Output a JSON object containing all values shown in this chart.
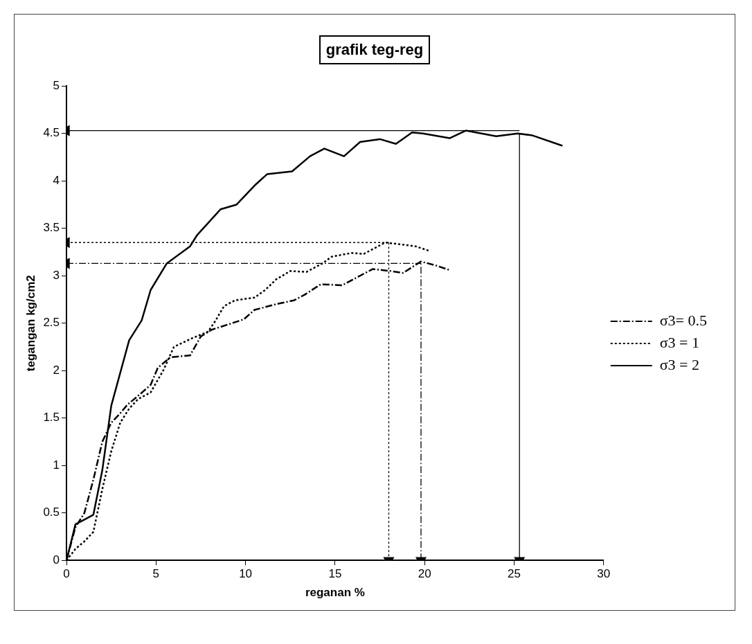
{
  "chart_data": {
    "type": "line",
    "title": "grafik teg-reg",
    "xlabel": "reganan %",
    "ylabel": "tegangan kg/cm2",
    "xlim": [
      0,
      30
    ],
    "xticks": [
      0,
      5,
      10,
      15,
      20,
      25,
      30
    ],
    "ylim": [
      0,
      5
    ],
    "yticks": [
      0,
      0.5,
      1,
      1.5,
      2,
      2.5,
      3,
      3.5,
      4,
      4.5,
      5
    ],
    "grid": false,
    "legend": "right",
    "series": [
      {
        "name": "σ3= 0.5",
        "color": "#000000",
        "line_style": "dashed",
        "x": [
          0,
          0.5,
          1,
          1.5,
          2,
          2.5,
          3,
          3.4,
          4.1,
          4.7,
          5.1,
          5.8,
          6.9,
          7.5,
          8.1,
          9.9,
          10.5,
          11.7,
          12.7,
          13.3,
          14.2,
          15.4,
          17.1,
          18.1,
          18.8,
          19.8,
          20.6,
          21.4
        ],
        "values": [
          0,
          0.35,
          0.5,
          0.85,
          1.25,
          1.45,
          1.55,
          1.64,
          1.75,
          1.85,
          2.03,
          2.14,
          2.16,
          2.36,
          2.43,
          2.54,
          2.64,
          2.7,
          2.74,
          2.8,
          2.91,
          2.9,
          3.07,
          3.05,
          3.03,
          3.15,
          3.11,
          3.06
        ]
      },
      {
        "name": "σ3 = 1",
        "color": "#000000",
        "line_style": "dotted",
        "x": [
          0,
          0.5,
          1,
          1.5,
          2,
          2.5,
          3,
          3.5,
          4,
          4.7,
          5,
          5.4,
          6,
          7,
          7.9,
          8.3,
          8.8,
          9.4,
          10.5,
          11.1,
          11.7,
          12.5,
          13.4,
          14.3,
          14.8,
          15.9,
          16.6,
          17.4,
          17.8,
          18.7,
          19.5,
          20.3
        ],
        "values": [
          0,
          0.12,
          0.2,
          0.3,
          0.75,
          1.15,
          1.45,
          1.6,
          1.7,
          1.77,
          1.87,
          2,
          2.25,
          2.34,
          2.41,
          2.52,
          2.68,
          2.74,
          2.77,
          2.85,
          2.96,
          3.05,
          3.04,
          3.13,
          3.2,
          3.24,
          3.23,
          3.31,
          3.35,
          3.33,
          3.31,
          3.26
        ]
      },
      {
        "name": "σ3 = 2",
        "color": "#000000",
        "line_style": "solid",
        "x": [
          0,
          0.5,
          1,
          1.5,
          2,
          2.5,
          3.5,
          4.2,
          4.7,
          5.6,
          6.9,
          7.3,
          8.6,
          9.5,
          10.5,
          11.2,
          12.6,
          13.6,
          14.4,
          15.5,
          16.4,
          17.5,
          18.4,
          19.3,
          19.9,
          21.4,
          22.3,
          24,
          25.2,
          26,
          27.7
        ],
        "values": [
          0,
          0.38,
          0.43,
          0.48,
          0.95,
          1.63,
          2.32,
          2.53,
          2.85,
          3.13,
          3.31,
          3.43,
          3.7,
          3.75,
          3.95,
          4.07,
          4.1,
          4.26,
          4.34,
          4.26,
          4.41,
          4.44,
          4.39,
          4.51,
          4.5,
          4.45,
          4.53,
          4.47,
          4.5,
          4.48,
          4.37
        ]
      },
      {
        "color": "#000000",
        "line_style": "solid",
        "marker": "triangle",
        "x": [
          0,
          25.3
        ],
        "values": [
          4.53,
          4.53
        ]
      },
      {
        "color": "#000000",
        "line_style": "solid",
        "marker": "triangle",
        "x": [
          25.3,
          25.3
        ],
        "values": [
          0,
          4.5
        ]
      },
      {
        "color": "#000000",
        "line_style": "dotted",
        "marker": "triangle",
        "x": [
          0,
          18
        ],
        "values": [
          3.35,
          3.35
        ]
      },
      {
        "color": "#000000",
        "line_style": "dotted",
        "marker": "triangle",
        "x": [
          18,
          18
        ],
        "values": [
          0,
          3.35
        ]
      },
      {
        "color": "#000000",
        "line_style": "dashed",
        "marker": "triangle",
        "x": [
          0,
          19.8
        ],
        "values": [
          3.13,
          3.13
        ]
      },
      {
        "color": "#000000",
        "line_style": "dashed",
        "marker": "triangle",
        "x": [
          19.8,
          19.8
        ],
        "values": [
          0,
          3.13
        ]
      }
    ]
  }
}
